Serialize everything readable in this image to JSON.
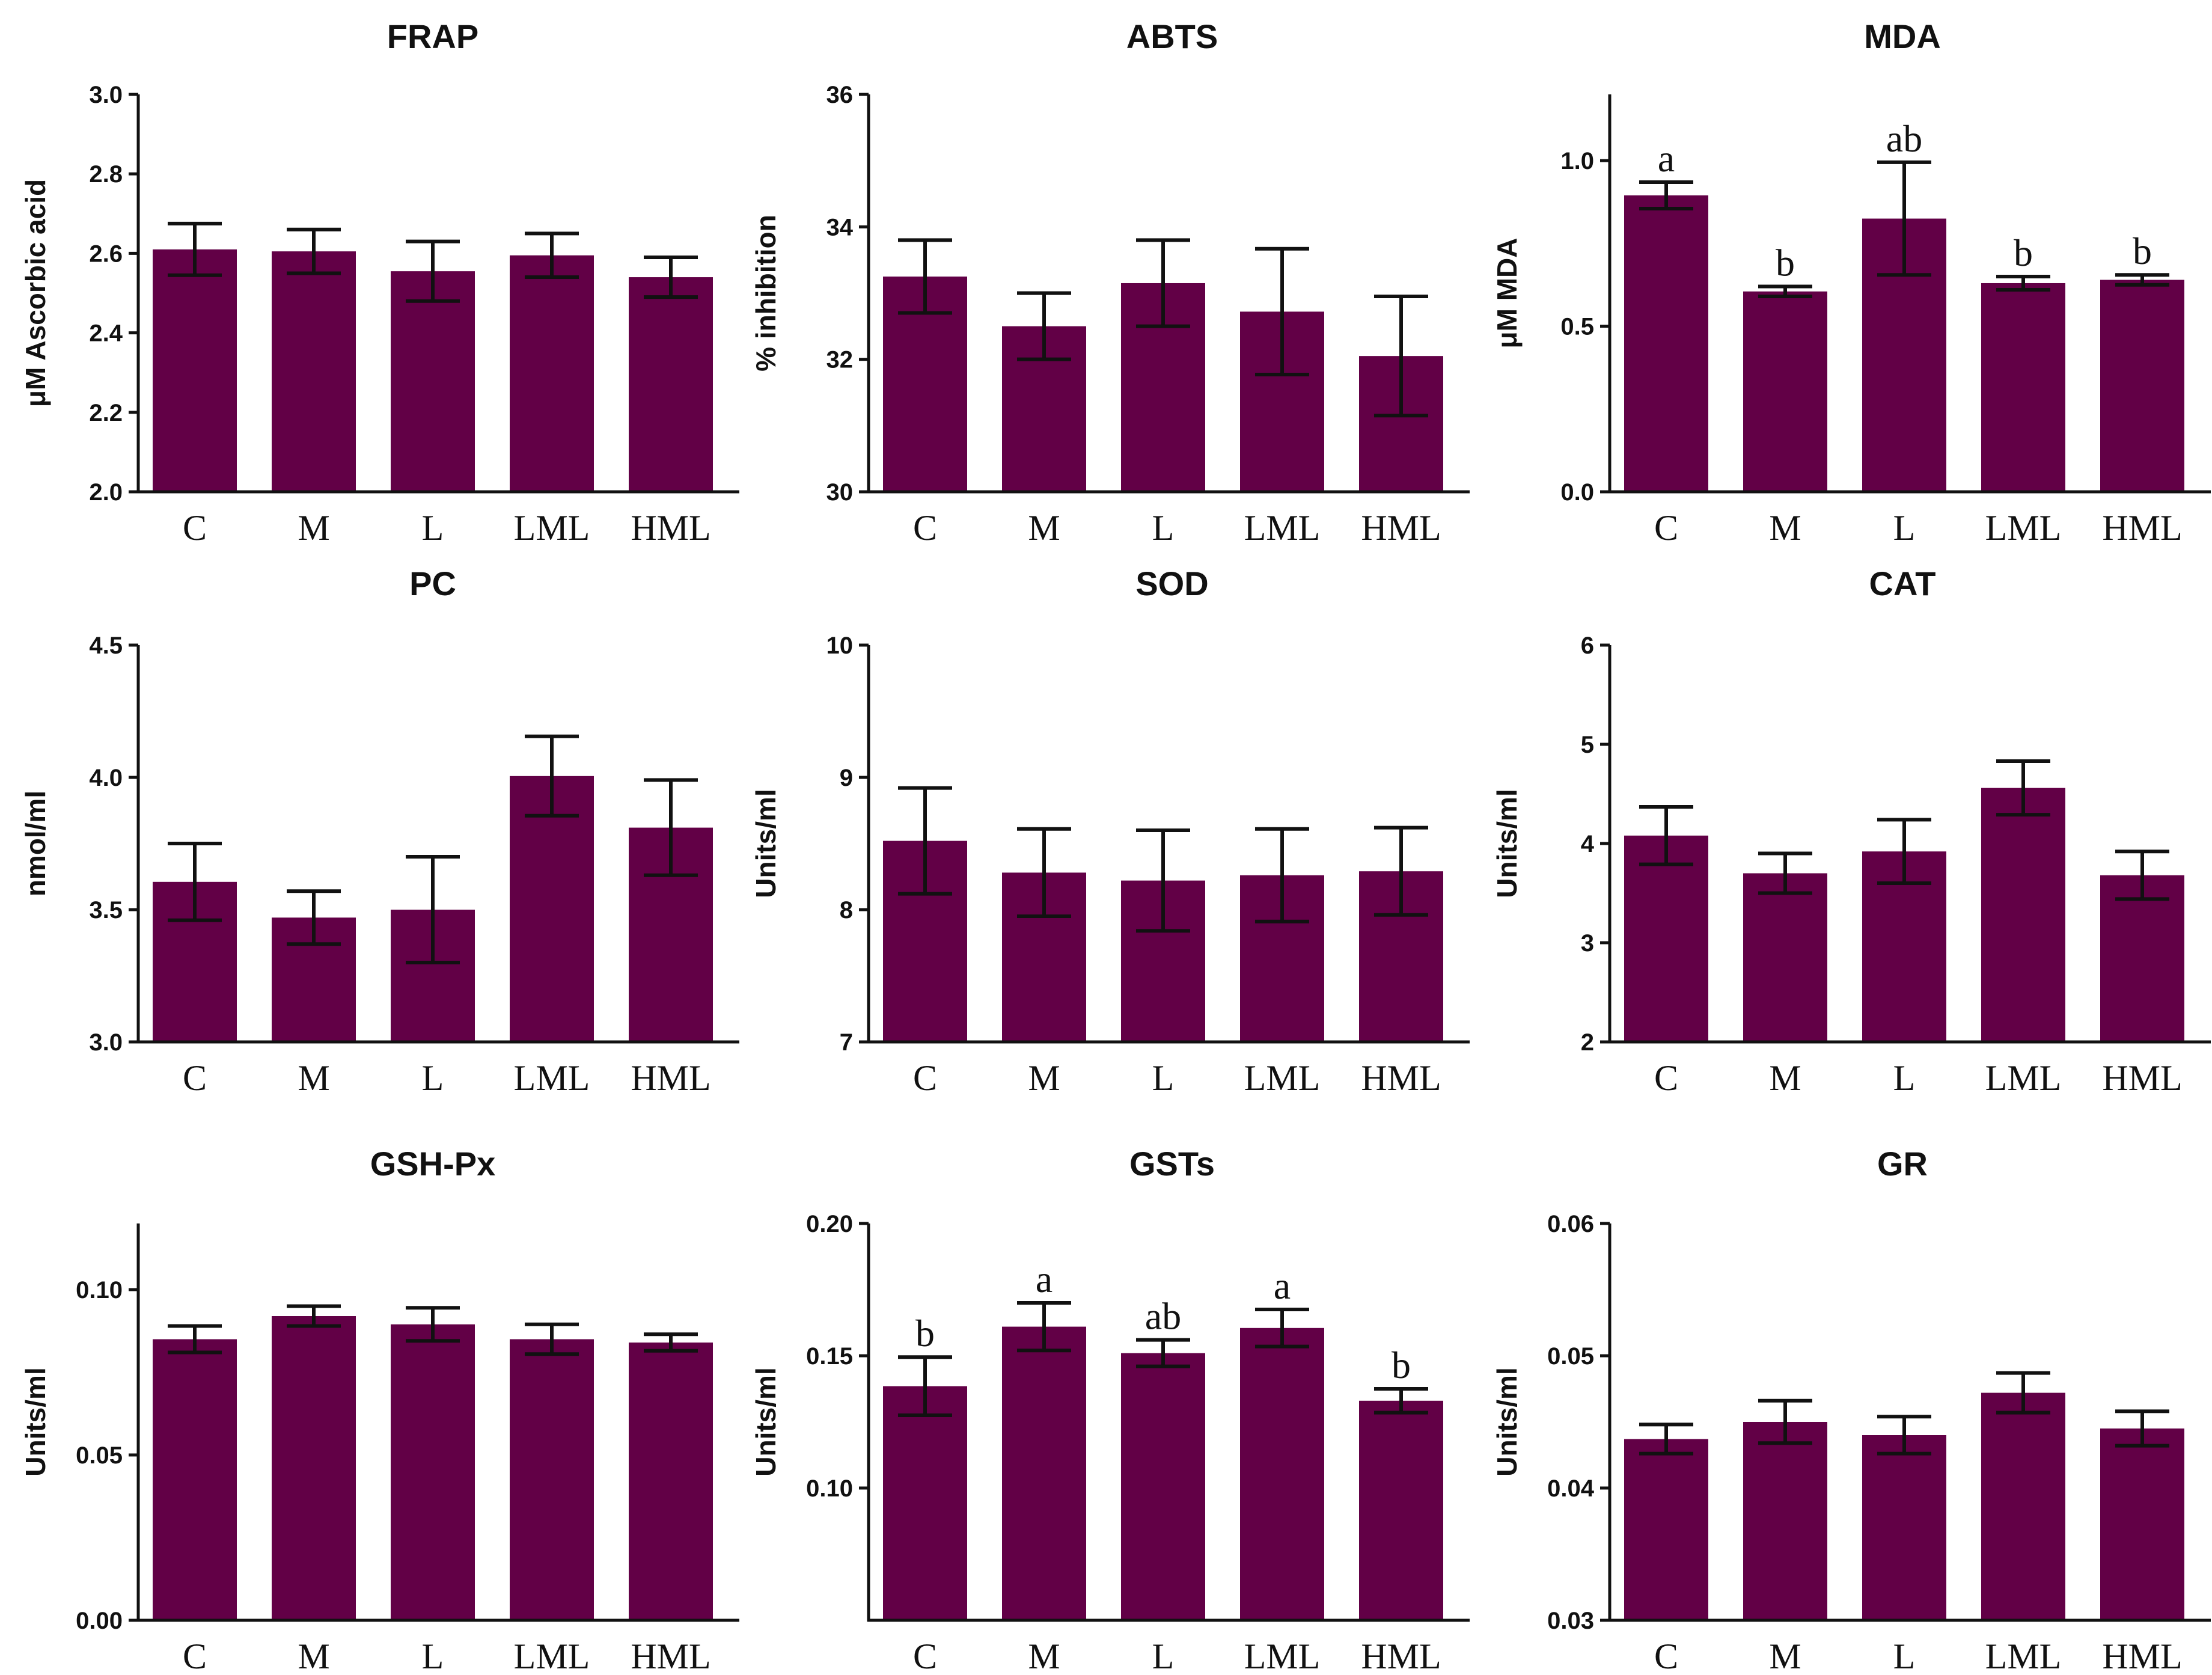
{
  "colors": {
    "bar": "#620046",
    "axis": "#111111",
    "background": "#ffffff"
  },
  "chart_data": [
    {
      "type": "bar",
      "title": "FRAP",
      "ylabel": "μM Ascorbic acid",
      "categories": [
        "C",
        "M",
        "L",
        "LML",
        "HML"
      ],
      "values": [
        2.61,
        2.605,
        2.555,
        2.595,
        2.54
      ],
      "errors": [
        0.065,
        0.055,
        0.075,
        0.055,
        0.05
      ],
      "ylim": [
        2.0,
        3.0
      ],
      "yticks": [
        2.0,
        2.2,
        2.4,
        2.6,
        2.8,
        3.0
      ],
      "ytick_labels": [
        "2.0",
        "2.2",
        "2.4",
        "2.6",
        "2.8",
        "3.0"
      ],
      "letters": []
    },
    {
      "type": "bar",
      "title": "ABTS",
      "ylabel": "% inhibition",
      "categories": [
        "C",
        "M",
        "L",
        "LML",
        "HML"
      ],
      "values": [
        33.25,
        32.5,
        33.15,
        32.72,
        32.05
      ],
      "errors": [
        0.55,
        0.5,
        0.65,
        0.95,
        0.9
      ],
      "ylim": [
        30,
        36
      ],
      "yticks": [
        30,
        32,
        34,
        36
      ],
      "ytick_labels": [
        "30",
        "32",
        "34",
        "36"
      ],
      "letters": []
    },
    {
      "type": "bar",
      "title": "MDA",
      "ylabel": "μM MDA",
      "categories": [
        "C",
        "M",
        "L",
        "LML",
        "HML"
      ],
      "values": [
        0.895,
        0.605,
        0.825,
        0.63,
        0.64
      ],
      "errors": [
        0.04,
        0.015,
        0.17,
        0.02,
        0.015
      ],
      "ylim": [
        0.0,
        1.2
      ],
      "yticks": [
        0.0,
        0.5,
        1.0
      ],
      "ytick_labels": [
        "0.0",
        "0.5",
        "1.0"
      ],
      "letters": [
        "a",
        "b",
        "ab",
        "b",
        "b"
      ]
    },
    {
      "type": "bar",
      "title": "PC",
      "ylabel": "nmol/ml",
      "categories": [
        "C",
        "M",
        "L",
        "LML",
        "HML"
      ],
      "values": [
        3.605,
        3.47,
        3.5,
        4.005,
        3.81
      ],
      "errors": [
        0.145,
        0.1,
        0.2,
        0.15,
        0.18
      ],
      "ylim": [
        3.0,
        4.5
      ],
      "yticks": [
        3.0,
        3.5,
        4.0,
        4.5
      ],
      "ytick_labels": [
        "3.0",
        "3.5",
        "4.0",
        "4.5"
      ],
      "letters": []
    },
    {
      "type": "bar",
      "title": "SOD",
      "ylabel": "Units/ml",
      "categories": [
        "C",
        "M",
        "L",
        "LML",
        "HML"
      ],
      "values": [
        8.52,
        8.28,
        8.22,
        8.26,
        8.29
      ],
      "errors": [
        0.4,
        0.33,
        0.38,
        0.35,
        0.33
      ],
      "ylim": [
        7,
        10
      ],
      "yticks": [
        7,
        8,
        9,
        10
      ],
      "ytick_labels": [
        "7",
        "8",
        "9",
        "10"
      ],
      "letters": []
    },
    {
      "type": "bar",
      "title": "CAT",
      "ylabel": "Units/ml",
      "categories": [
        "C",
        "M",
        "L",
        "LML",
        "HML"
      ],
      "values": [
        4.08,
        3.7,
        3.92,
        4.56,
        3.68
      ],
      "errors": [
        0.29,
        0.2,
        0.32,
        0.27,
        0.24
      ],
      "ylim": [
        2,
        6
      ],
      "yticks": [
        2,
        3,
        4,
        5,
        6
      ],
      "ytick_labels": [
        "2",
        "3",
        "4",
        "5",
        "6"
      ],
      "letters": []
    },
    {
      "type": "bar",
      "title": "GSH-Px",
      "ylabel": "Units/ml",
      "categories": [
        "C",
        "M",
        "L",
        "LML",
        "HML"
      ],
      "values": [
        0.085,
        0.092,
        0.0895,
        0.085,
        0.084
      ],
      "errors": [
        0.004,
        0.003,
        0.005,
        0.0045,
        0.0025
      ],
      "ylim": [
        0.0,
        0.12
      ],
      "yticks": [
        0.0,
        0.05,
        0.1
      ],
      "ytick_labels": [
        "0.00",
        "0.05",
        "0.10"
      ],
      "letters": []
    },
    {
      "type": "bar",
      "title": "GSTs",
      "ylabel": "Units/ml",
      "categories": [
        "C",
        "M",
        "L",
        "LML",
        "HML"
      ],
      "values": [
        0.1385,
        0.161,
        0.151,
        0.1605,
        0.133
      ],
      "errors": [
        0.011,
        0.009,
        0.005,
        0.007,
        0.0045
      ],
      "ylim": [
        0.05,
        0.2
      ],
      "yticks": [
        0.1,
        0.15,
        0.2
      ],
      "ytick_labels": [
        "0.10",
        "0.15",
        "0.20"
      ],
      "letters": [
        "b",
        "a",
        "ab",
        "a",
        "b"
      ]
    },
    {
      "type": "bar",
      "title": "GR",
      "ylabel": "Units/ml",
      "categories": [
        "C",
        "M",
        "L",
        "LML",
        "HML"
      ],
      "values": [
        0.0437,
        0.045,
        0.044,
        0.0472,
        0.0445
      ],
      "errors": [
        0.0011,
        0.0016,
        0.0014,
        0.0015,
        0.0013
      ],
      "ylim": [
        0.03,
        0.06
      ],
      "yticks": [
        0.03,
        0.04,
        0.05,
        0.06
      ],
      "ytick_labels": [
        "0.03",
        "0.04",
        "0.05",
        "0.06"
      ],
      "letters": []
    }
  ]
}
